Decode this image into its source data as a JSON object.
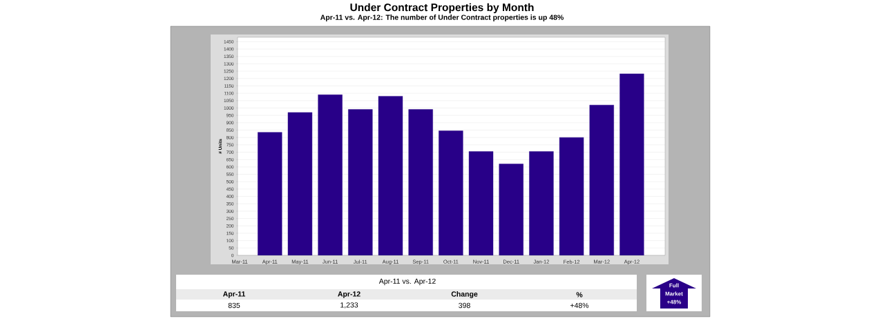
{
  "chart_data": {
    "type": "bar",
    "title": "Under Contract Properties by Month",
    "subtitle": "Apr-11 vs. Apr-12: The number of Under Contract properties is up 48%",
    "ylabel": "# Units",
    "categories": [
      "Mar-11",
      "Apr-11",
      "May-11",
      "Jun-11",
      "Jul-11",
      "Aug-11",
      "Sep-11",
      "Oct-11",
      "Nov-11",
      "Dec-11",
      "Jan-12",
      "Feb-12",
      "Mar-12",
      "Apr-12"
    ],
    "values": [
      null,
      835,
      970,
      1090,
      990,
      1080,
      990,
      845,
      705,
      620,
      705,
      800,
      1020,
      1233
    ],
    "color": "#280088",
    "ylim": [
      0,
      1480
    ],
    "yticks": [
      0,
      50,
      100,
      150,
      200,
      250,
      300,
      350,
      400,
      450,
      500,
      550,
      600,
      650,
      700,
      750,
      800,
      850,
      900,
      950,
      1000,
      1050,
      1100,
      1150,
      1200,
      1250,
      1300,
      1350,
      1400,
      1450
    ],
    "grid": "y",
    "annotations": [
      "Apr-11 vs. Apr-12",
      "Apr-11",
      "Apr-12",
      "Change",
      "%",
      "835",
      "1,233",
      "398",
      "+48%",
      "Full Market +48%"
    ]
  }
}
